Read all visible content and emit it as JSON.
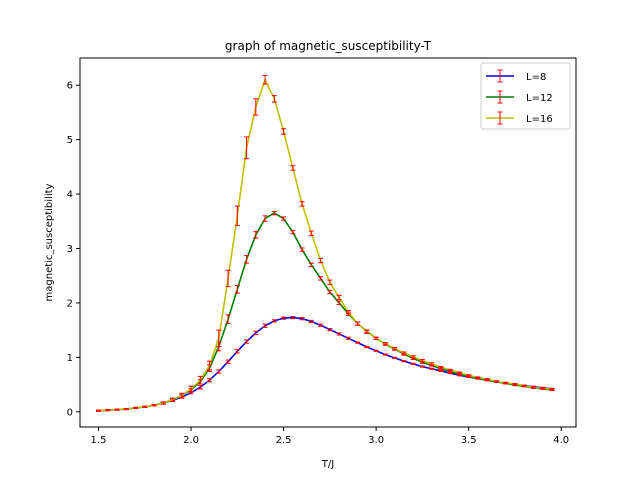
{
  "chart_data": {
    "type": "line",
    "title": "graph of magnetic_susceptibility-T",
    "xlabel": "T/J",
    "ylabel": "magnetic_susceptibility",
    "xlim": [
      1.4,
      4.08
    ],
    "ylim": [
      -0.28,
      6.5
    ],
    "xticks": [
      1.5,
      2.0,
      2.5,
      3.0,
      3.5,
      4.0
    ],
    "xtick_labels": [
      "1.5",
      "2.0",
      "2.5",
      "3.0",
      "3.5",
      "4.0"
    ],
    "yticks": [
      0,
      1,
      2,
      3,
      4,
      5,
      6
    ],
    "ytick_labels": [
      "0",
      "1",
      "2",
      "3",
      "4",
      "5",
      "6"
    ],
    "grid": false,
    "legend_position": "top-right",
    "errorbar_color": "#ff0000",
    "x": [
      1.5,
      1.55,
      1.6,
      1.65,
      1.7,
      1.75,
      1.8,
      1.85,
      1.9,
      1.95,
      2.0,
      2.05,
      2.1,
      2.15,
      2.2,
      2.25,
      2.3,
      2.35,
      2.4,
      2.45,
      2.5,
      2.55,
      2.6,
      2.65,
      2.7,
      2.75,
      2.8,
      2.85,
      2.9,
      2.95,
      3.0,
      3.05,
      3.1,
      3.15,
      3.2,
      3.25,
      3.3,
      3.35,
      3.4,
      3.45,
      3.5,
      3.55,
      3.6,
      3.65,
      3.7,
      3.75,
      3.8,
      3.85,
      3.9,
      3.95
    ],
    "series": [
      {
        "name": "L=8",
        "color": "#0000ff",
        "values": [
          0.02,
          0.03,
          0.04,
          0.05,
          0.07,
          0.09,
          0.12,
          0.16,
          0.21,
          0.27,
          0.35,
          0.45,
          0.58,
          0.74,
          0.92,
          1.11,
          1.29,
          1.45,
          1.58,
          1.67,
          1.72,
          1.73,
          1.71,
          1.66,
          1.59,
          1.51,
          1.43,
          1.35,
          1.27,
          1.19,
          1.12,
          1.05,
          0.99,
          0.93,
          0.88,
          0.83,
          0.79,
          0.75,
          0.71,
          0.67,
          0.64,
          0.61,
          0.58,
          0.55,
          0.53,
          0.5,
          0.48,
          0.46,
          0.44,
          0.42
        ],
        "errors": [
          0.01,
          0.01,
          0.01,
          0.01,
          0.01,
          0.01,
          0.01,
          0.01,
          0.02,
          0.02,
          0.02,
          0.03,
          0.03,
          0.03,
          0.03,
          0.03,
          0.03,
          0.03,
          0.03,
          0.02,
          0.02,
          0.02,
          0.02,
          0.02,
          0.02,
          0.02,
          0.02,
          0.02,
          0.01,
          0.01,
          0.01,
          0.01,
          0.01,
          0.01,
          0.01,
          0.01,
          0.01,
          0.01,
          0.01,
          0.01,
          0.01,
          0.01,
          0.01,
          0.01,
          0.01,
          0.01,
          0.01,
          0.01,
          0.01,
          0.01
        ]
      },
      {
        "name": "L=12",
        "color": "#008000",
        "values": [
          0.02,
          0.03,
          0.04,
          0.05,
          0.07,
          0.09,
          0.12,
          0.16,
          0.22,
          0.3,
          0.4,
          0.55,
          0.8,
          1.2,
          1.7,
          2.25,
          2.8,
          3.25,
          3.55,
          3.65,
          3.55,
          3.3,
          2.98,
          2.7,
          2.45,
          2.2,
          2.0,
          1.8,
          1.62,
          1.48,
          1.35,
          1.24,
          1.15,
          1.06,
          0.98,
          0.91,
          0.85,
          0.79,
          0.74,
          0.69,
          0.65,
          0.61,
          0.58,
          0.55,
          0.52,
          0.49,
          0.47,
          0.44,
          0.42,
          0.4
        ],
        "errors": [
          0.01,
          0.01,
          0.01,
          0.01,
          0.01,
          0.01,
          0.01,
          0.02,
          0.02,
          0.02,
          0.03,
          0.04,
          0.06,
          0.08,
          0.08,
          0.07,
          0.07,
          0.06,
          0.05,
          0.03,
          0.03,
          0.03,
          0.03,
          0.03,
          0.03,
          0.03,
          0.03,
          0.03,
          0.03,
          0.02,
          0.02,
          0.02,
          0.02,
          0.02,
          0.02,
          0.02,
          0.01,
          0.01,
          0.01,
          0.01,
          0.01,
          0.01,
          0.01,
          0.01,
          0.01,
          0.01,
          0.01,
          0.01,
          0.01,
          0.01
        ]
      },
      {
        "name": "L=16",
        "color": "#bfbf00",
        "values": [
          0.02,
          0.03,
          0.04,
          0.05,
          0.07,
          0.09,
          0.12,
          0.16,
          0.22,
          0.3,
          0.42,
          0.58,
          0.85,
          1.35,
          2.45,
          3.6,
          4.85,
          5.6,
          6.1,
          5.75,
          5.15,
          4.48,
          3.82,
          3.28,
          2.78,
          2.38,
          2.1,
          1.83,
          1.62,
          1.47,
          1.35,
          1.25,
          1.16,
          1.08,
          1.01,
          0.94,
          0.88,
          0.82,
          0.77,
          0.72,
          0.67,
          0.63,
          0.6,
          0.56,
          0.53,
          0.51,
          0.48,
          0.45,
          0.43,
          0.41
        ],
        "errors": [
          0.01,
          0.01,
          0.01,
          0.01,
          0.01,
          0.01,
          0.01,
          0.02,
          0.03,
          0.04,
          0.05,
          0.07,
          0.08,
          0.15,
          0.15,
          0.18,
          0.2,
          0.15,
          0.08,
          0.06,
          0.05,
          0.04,
          0.04,
          0.04,
          0.04,
          0.04,
          0.04,
          0.03,
          0.03,
          0.03,
          0.02,
          0.02,
          0.02,
          0.02,
          0.02,
          0.02,
          0.02,
          0.01,
          0.01,
          0.01,
          0.01,
          0.01,
          0.01,
          0.01,
          0.01,
          0.01,
          0.01,
          0.01,
          0.01,
          0.01
        ]
      }
    ]
  }
}
